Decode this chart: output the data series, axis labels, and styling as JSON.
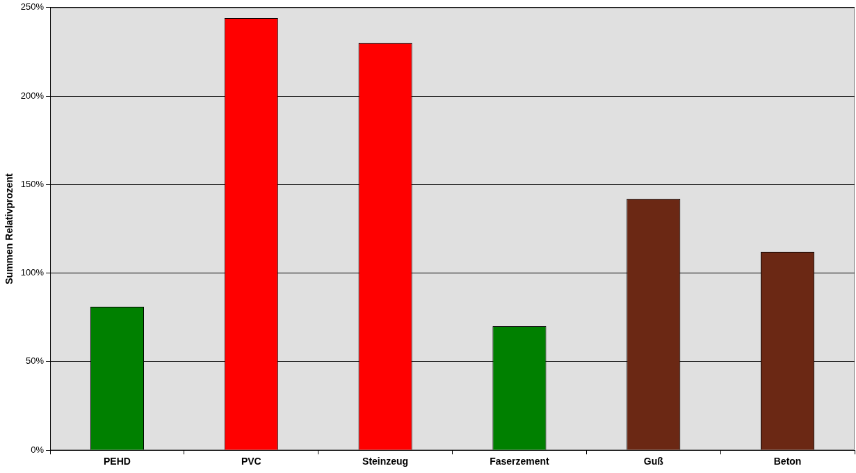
{
  "chart_data": {
    "type": "bar",
    "ylabel": "Summen Relativprozent",
    "categories": [
      "PEHD",
      "PVC",
      "Steinzeug",
      "Faserzement",
      "Guß",
      "Beton"
    ],
    "values": [
      81,
      244,
      230,
      70,
      142,
      112
    ],
    "colors": [
      "#008000",
      "#ff0000",
      "#ff0000",
      "#008000",
      "#6b2814",
      "#6b2814"
    ],
    "ylim": [
      0,
      250
    ],
    "yticks": [
      {
        "value": 0,
        "label": "0%"
      },
      {
        "value": 50,
        "label": "50%"
      },
      {
        "value": 100,
        "label": "100%"
      },
      {
        "value": 150,
        "label": "150%"
      },
      {
        "value": 200,
        "label": "200%"
      },
      {
        "value": 250,
        "label": "250%"
      }
    ],
    "grid": "y",
    "legend": false
  }
}
